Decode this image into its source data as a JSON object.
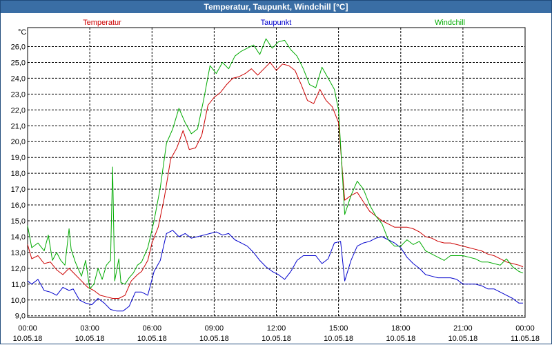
{
  "window": {
    "title": "Temperatur, Taupunkt, Windchill [°C]"
  },
  "chart_data": {
    "type": "line",
    "title": "Temperatur, Taupunkt, Windchill [°C]",
    "ylabel": "°C",
    "ylim": [
      8.9,
      27.2
    ],
    "xlim": [
      0,
      24
    ],
    "grid": true,
    "y_ticks": [
      "9,0",
      "10,0",
      "11,0",
      "12,0",
      "13,0",
      "14,0",
      "15,0",
      "16,0",
      "17,0",
      "18,0",
      "19,0",
      "20,0",
      "21,0",
      "22,0",
      "23,0",
      "24,0",
      "25,0",
      "26,0"
    ],
    "x_ticks": [
      {
        "time": "00:00",
        "date": "10.05.18"
      },
      {
        "time": "03:00",
        "date": "10.05.18"
      },
      {
        "time": "06:00",
        "date": "10.05.18"
      },
      {
        "time": "09:00",
        "date": "10.05.18"
      },
      {
        "time": "12:00",
        "date": "10.05.18"
      },
      {
        "time": "15:00",
        "date": "10.05.18"
      },
      {
        "time": "18:00",
        "date": "10.05.18"
      },
      {
        "time": "21:00",
        "date": "10.05.18"
      },
      {
        "time": "00:00",
        "date": "11.05.18"
      }
    ],
    "series": [
      {
        "name": "Temperatur",
        "color": "#cc0000",
        "x": [
          0,
          0.2,
          0.5,
          0.8,
          1.1,
          1.4,
          1.7,
          2.0,
          2.3,
          2.6,
          2.9,
          3.2,
          3.5,
          3.8,
          4.1,
          4.4,
          4.7,
          5.0,
          5.3,
          5.5,
          5.8,
          6.0,
          6.3,
          6.6,
          6.9,
          7.2,
          7.5,
          7.8,
          8.1,
          8.4,
          8.7,
          9.0,
          9.3,
          9.6,
          9.9,
          10.2,
          10.5,
          10.8,
          11.1,
          11.4,
          11.7,
          12.0,
          12.3,
          12.6,
          12.9,
          13.2,
          13.5,
          13.8,
          14.1,
          14.4,
          14.7,
          15.0,
          15.3,
          15.6,
          15.9,
          16.2,
          16.5,
          16.8,
          17.1,
          17.4,
          17.7,
          18.0,
          18.3,
          18.6,
          18.9,
          19.2,
          19.5,
          19.8,
          20.1,
          20.4,
          20.7,
          21.0,
          21.3,
          21.6,
          21.9,
          22.2,
          22.5,
          22.8,
          23.1,
          23.4,
          23.7,
          23.9
        ],
        "values": [
          13.5,
          12.6,
          12.8,
          12.3,
          12.4,
          11.9,
          11.6,
          12.0,
          11.6,
          11.2,
          10.8,
          10.6,
          10.3,
          10.2,
          10.1,
          10.1,
          10.3,
          11.2,
          11.6,
          11.8,
          12.5,
          13.6,
          14.6,
          16.5,
          18.9,
          19.6,
          20.7,
          19.5,
          19.6,
          20.4,
          22.3,
          22.8,
          23.1,
          23.6,
          24.0,
          24.1,
          24.3,
          24.6,
          24.2,
          24.6,
          25.0,
          24.5,
          24.9,
          24.8,
          24.5,
          23.6,
          22.6,
          22.4,
          23.3,
          22.6,
          22.2,
          21.2,
          16.3,
          16.6,
          16.8,
          16.2,
          15.6,
          15.3,
          15.0,
          14.8,
          14.6,
          14.6,
          14.6,
          14.5,
          14.3,
          14.0,
          13.9,
          13.7,
          13.6,
          13.6,
          13.5,
          13.4,
          13.3,
          13.2,
          13.1,
          12.9,
          12.8,
          12.6,
          12.4,
          12.3,
          12.2,
          12.1
        ]
      },
      {
        "name": "Taupunkt",
        "color": "#0000cc",
        "x": [
          0,
          0.2,
          0.5,
          0.8,
          1.1,
          1.4,
          1.7,
          2.0,
          2.2,
          2.5,
          2.8,
          3.1,
          3.4,
          3.7,
          4.0,
          4.3,
          4.6,
          4.9,
          5.2,
          5.5,
          5.8,
          6.1,
          6.4,
          6.7,
          7.0,
          7.3,
          7.6,
          7.9,
          8.2,
          8.5,
          8.8,
          9.1,
          9.4,
          9.7,
          10.0,
          10.3,
          10.6,
          10.9,
          11.2,
          11.5,
          11.8,
          12.1,
          12.4,
          12.7,
          13.0,
          13.3,
          13.6,
          13.9,
          14.2,
          14.5,
          14.8,
          15.1,
          15.3,
          15.6,
          15.9,
          16.2,
          16.5,
          16.8,
          17.1,
          17.4,
          17.7,
          18.0,
          18.3,
          18.6,
          18.9,
          19.2,
          19.5,
          19.8,
          20.1,
          20.4,
          20.7,
          21.0,
          21.3,
          21.6,
          21.9,
          22.2,
          22.5,
          22.8,
          23.1,
          23.4,
          23.7,
          23.9
        ],
        "values": [
          11.2,
          11.0,
          11.3,
          10.6,
          10.5,
          10.3,
          10.8,
          10.6,
          10.7,
          10.0,
          9.8,
          9.7,
          10.1,
          9.8,
          9.4,
          9.3,
          9.3,
          9.6,
          10.5,
          10.5,
          10.3,
          11.8,
          12.5,
          14.2,
          14.4,
          14.0,
          14.2,
          13.9,
          14.0,
          14.1,
          14.2,
          14.3,
          14.1,
          14.2,
          13.8,
          13.6,
          13.4,
          13.0,
          12.5,
          12.1,
          11.8,
          11.6,
          11.3,
          11.8,
          12.5,
          12.8,
          12.8,
          12.8,
          12.3,
          12.6,
          13.6,
          13.7,
          11.2,
          12.5,
          13.4,
          13.6,
          13.7,
          13.9,
          14.0,
          13.8,
          13.6,
          13.3,
          12.7,
          12.3,
          12.0,
          11.6,
          11.5,
          11.4,
          11.4,
          11.4,
          11.3,
          11.0,
          11.0,
          11.0,
          10.9,
          10.7,
          10.7,
          10.5,
          10.3,
          10.1,
          9.8,
          9.8
        ]
      },
      {
        "name": "Windchill",
        "color": "#00aa00",
        "x": [
          0,
          0.2,
          0.5,
          0.8,
          1.0,
          1.2,
          1.4,
          1.6,
          1.8,
          2.0,
          2.1,
          2.3,
          2.6,
          2.8,
          3.0,
          3.2,
          3.4,
          3.6,
          3.8,
          4.0,
          4.1,
          4.2,
          4.4,
          4.5,
          4.7,
          4.9,
          5.1,
          5.3,
          5.5,
          5.8,
          6.1,
          6.4,
          6.7,
          7.0,
          7.3,
          7.6,
          7.9,
          8.2,
          8.5,
          8.8,
          9.1,
          9.4,
          9.7,
          10.0,
          10.3,
          10.6,
          10.9,
          11.2,
          11.5,
          11.8,
          12.1,
          12.4,
          12.7,
          13.0,
          13.3,
          13.6,
          13.9,
          14.2,
          14.5,
          14.8,
          15.0,
          15.3,
          15.6,
          15.9,
          16.2,
          16.5,
          16.8,
          17.1,
          17.4,
          17.7,
          18.0,
          18.3,
          18.6,
          18.9,
          19.2,
          19.5,
          19.8,
          20.1,
          20.4,
          20.7,
          21.0,
          21.3,
          21.6,
          21.9,
          22.2,
          22.5,
          22.8,
          23.1,
          23.4,
          23.7,
          23.9
        ],
        "values": [
          14.7,
          13.3,
          13.6,
          13.1,
          14.1,
          12.5,
          13.0,
          12.5,
          12.2,
          14.5,
          13.2,
          12.4,
          11.5,
          12.5,
          10.7,
          11.0,
          12.0,
          11.3,
          12.2,
          12.5,
          18.4,
          11.2,
          12.6,
          11.1,
          11.0,
          11.4,
          11.7,
          12.2,
          12.4,
          13.3,
          15.0,
          17.1,
          19.9,
          20.8,
          22.1,
          21.2,
          20.5,
          20.8,
          22.7,
          24.8,
          24.3,
          25.0,
          24.6,
          25.4,
          25.7,
          25.9,
          26.1,
          25.5,
          26.5,
          25.9,
          26.3,
          26.4,
          25.8,
          25.4,
          24.6,
          23.6,
          23.4,
          24.7,
          24.0,
          23.3,
          22.0,
          15.4,
          16.6,
          17.5,
          17.0,
          16.0,
          15.3,
          14.8,
          13.8,
          13.4,
          13.4,
          13.8,
          13.5,
          13.7,
          13.1,
          12.9,
          12.7,
          12.5,
          12.8,
          12.8,
          12.8,
          12.7,
          12.6,
          12.4,
          12.4,
          12.3,
          12.2,
          12.6,
          12.1,
          11.8,
          11.7
        ]
      }
    ]
  }
}
